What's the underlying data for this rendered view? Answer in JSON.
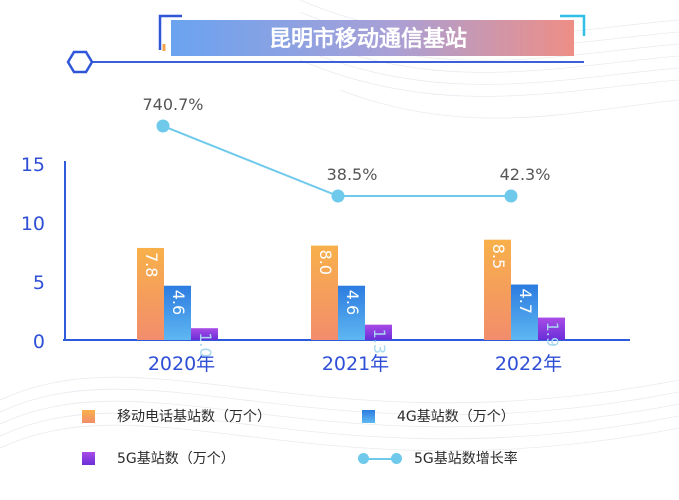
{
  "title": "昆明市移动通信基站",
  "colors": {
    "mobile": "#f5a34a",
    "g4": "#3a8fe6",
    "g5": "#8a3fe0",
    "growth": "#6ec9ea",
    "title_left": "#6aa3f0",
    "title_right": "#ee8e86"
  },
  "chart_data": {
    "type": "bar",
    "categories": [
      "2020年",
      "2021年",
      "2022年"
    ],
    "ylim": [
      0,
      15
    ],
    "yticks": [
      0,
      5,
      10,
      15
    ],
    "series": [
      {
        "name": "移动电话基站数（万个）",
        "values": [
          7.8,
          8.0,
          8.5
        ],
        "labels": [
          "7.8",
          "8.0",
          "8.5"
        ]
      },
      {
        "name": "4G基站数（万个）",
        "values": [
          4.6,
          4.6,
          4.7
        ],
        "labels": [
          "4.6",
          "4.6",
          "4.7"
        ]
      },
      {
        "name": "5G基站数（万个）",
        "values": [
          1.0,
          1.3,
          1.9
        ],
        "labels": [
          "1.0",
          "1.3",
          "1.9"
        ]
      }
    ],
    "line_series": {
      "name": "5G基站数增长率",
      "values": [
        740.7,
        38.5,
        42.3
      ],
      "labels": [
        "740.7%",
        "38.5%",
        "42.3%"
      ]
    }
  }
}
